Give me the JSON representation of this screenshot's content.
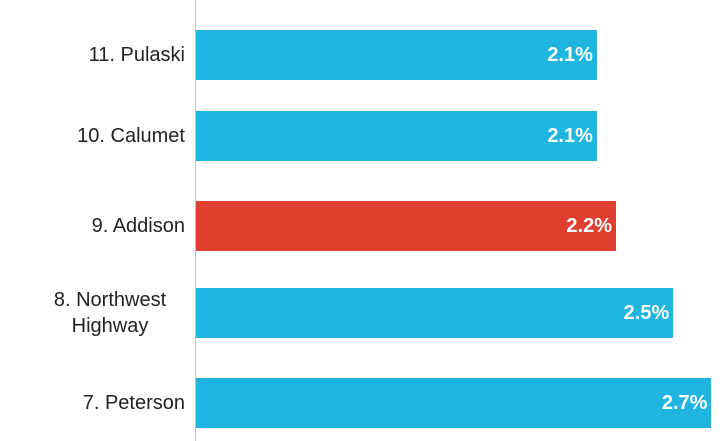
{
  "chart_data": {
    "type": "bar",
    "orientation": "horizontal",
    "categories": [
      "11. Pulaski",
      "10. Calumet",
      "9. Addison",
      "8. Northwest Highway",
      "7. Peterson"
    ],
    "values": [
      2.1,
      2.1,
      2.2,
      2.5,
      2.7
    ],
    "value_labels": [
      "2.1%",
      "2.1%",
      "2.2%",
      "2.5%",
      "2.7%"
    ],
    "colors": [
      "#1fb5e0",
      "#1fb5e0",
      "#de3f2e",
      "#1fb5e0",
      "#1fb5e0"
    ],
    "xlim": [
      0,
      2.75
    ]
  }
}
